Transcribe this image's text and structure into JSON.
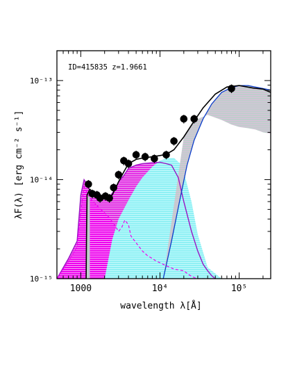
{
  "chart_data": {
    "type": "line",
    "annotation": "ID=415835 z=1.9661",
    "xlabel": "wavelength λ[Å]",
    "ylabel": "λF(λ) [erg cm⁻² s⁻¹]",
    "xscale": "log",
    "yscale": "log",
    "xlim": [
      500,
      250000
    ],
    "ylim": [
      1e-15,
      2e-13
    ],
    "x_ticks": [
      {
        "value": 1000,
        "label": "1000"
      },
      {
        "value": 10000,
        "label": "10⁴"
      },
      {
        "value": 100000,
        "label": "10⁵"
      }
    ],
    "y_ticks": [
      {
        "value": 1e-15,
        "label": "10⁻¹⁵"
      },
      {
        "value": 1e-14,
        "label": "10⁻¹⁴"
      },
      {
        "value": 1e-13,
        "label": "10⁻¹³"
      }
    ],
    "colors": {
      "magenta": "#ee00ee",
      "magenta_line": "#9a14c4",
      "mauve": "#c8a6cf",
      "cyan": "#8ef0f4",
      "grey": "#c0cdcc",
      "blue": "#0b3cc9",
      "black": "#000000"
    },
    "photometry": {
      "x": [
        1250,
        1400,
        1600,
        1750,
        2050,
        2300,
        2600,
        3000,
        3500,
        4000,
        5000,
        6500,
        8500,
        12000,
        15000,
        20000,
        27000,
        80000
      ],
      "y": [
        9e-15,
        7.2e-15,
        7e-15,
        6.5e-15,
        6.8e-15,
        6.5e-15,
        8.3e-15,
        1.12e-14,
        1.55e-14,
        1.45e-14,
        1.78e-14,
        1.7e-14,
        1.63e-14,
        1.78e-14,
        2.45e-14,
        4.1e-14,
        4.1e-14,
        8.3e-14
      ],
      "yerr_frac": 0.1
    },
    "series": [
      {
        "role": "total",
        "x": [
          1170,
          1180,
          1200,
          1300,
          1500,
          1700,
          2000,
          2500,
          3000,
          3500,
          4000,
          5000,
          6000,
          8000,
          10000,
          12000,
          15000,
          20000,
          27000,
          35000,
          50000,
          70000,
          100000,
          150000,
          200000,
          250000
        ],
        "y": [
          1e-15,
          2.5e-15,
          7e-15,
          8e-15,
          7.2e-15,
          6.8e-15,
          6.4e-15,
          7e-15,
          9.5e-15,
          1.2e-14,
          1.45e-14,
          1.6e-14,
          1.65e-14,
          1.7e-14,
          1.75e-14,
          1.8e-14,
          2e-14,
          2.7e-14,
          3.9e-14,
          5.3e-14,
          7.3e-14,
          8.6e-14,
          8.9e-14,
          8.4e-14,
          8.2e-14,
          7.6e-14
        ]
      },
      {
        "role": "host_upper",
        "x": [
          500,
          700,
          900,
          1000,
          1100,
          1200,
          1300,
          1500,
          1700,
          2000,
          2300,
          2700,
          3000,
          3500,
          4000,
          5000,
          6000,
          8000,
          10000,
          12000,
          14000,
          17000,
          20000,
          25000,
          30000,
          35000,
          40000,
          45000,
          50000
        ],
        "y": [
          1e-15,
          1.6e-15,
          2.4e-15,
          7e-15,
          1e-14,
          9e-15,
          7.7e-15,
          7e-15,
          6.6e-15,
          6.4e-15,
          6.6e-15,
          8e-15,
          9.5e-15,
          1.1e-14,
          1.3e-14,
          1.4e-14,
          1.45e-14,
          1.48e-14,
          1.5e-14,
          1.45e-14,
          1.4e-14,
          1.05e-14,
          6e-15,
          3e-15,
          1.9e-15,
          1.4e-15,
          1.2e-15,
          1.07e-15,
          1e-15
        ]
      },
      {
        "role": "host_lower",
        "x": [
          500,
          700,
          900,
          1000,
          1100,
          1300,
          1500,
          1800,
          2200,
          2600,
          3000,
          3300,
          3600,
          4000,
          4300,
          5000,
          6000,
          7000,
          8000,
          9000,
          10000,
          12000,
          15000,
          20000,
          23000,
          26000,
          30000,
          35000,
          45000,
          50000
        ],
        "y": [
          1e-15,
          1.5e-15,
          2.1e-15,
          4.8e-15,
          8.5e-15,
          6.5e-15,
          5.8e-15,
          5e-15,
          4.3e-15,
          3.6e-15,
          3e-15,
          3.3e-15,
          3.9e-15,
          3.5e-15,
          2.7e-15,
          2.3e-15,
          1.9e-15,
          1.7e-15,
          1.6e-15,
          1.5e-15,
          1.45e-15,
          1.35e-15,
          1.25e-15,
          1.2e-15,
          1.1e-15,
          1.04e-15,
          1e-15,
          1e-15,
          1e-15,
          1e-15
        ]
      },
      {
        "role": "agn_accretion_disk",
        "x": [
          2000,
          2500,
          3000,
          4000,
          5000,
          6000,
          8000,
          10000,
          12000,
          15000,
          18000,
          20000,
          25000,
          30000,
          40000,
          60000,
          80000,
          100000,
          120000,
          160000,
          200000,
          250000
        ],
        "y": [
          1e-15,
          2.5e-15,
          4e-15,
          6.2e-15,
          8.5e-15,
          1.05e-14,
          1.35e-14,
          1.55e-14,
          1.65e-14,
          1.66e-14,
          1.45e-14,
          1.2e-14,
          6e-15,
          2.8e-15,
          1.3e-15,
          1e-15,
          1e-15,
          1e-15,
          1e-15,
          1e-15,
          1e-15,
          1e-15
        ]
      },
      {
        "role": "agn_torus",
        "x": [
          11000,
          14000,
          18000,
          22000,
          27000,
          35000,
          45000,
          60000,
          80000,
          100000,
          130000,
          160000,
          200000,
          250000
        ],
        "y": [
          1e-15,
          2.4e-15,
          6.5e-15,
          1.4e-14,
          2.5e-14,
          4.1e-14,
          5.8e-14,
          7.6e-14,
          8.5e-14,
          8.9e-14,
          8.9e-14,
          8.6e-14,
          8.3e-14,
          8e-14
        ]
      },
      {
        "role": "agn_torus_lower",
        "x": [
          20000,
          25000,
          30000,
          40000,
          60000,
          80000,
          100000,
          130000,
          160000,
          200000,
          250000
        ],
        "y": [
          2.7e-14,
          3.6e-14,
          4.1e-14,
          4.5e-14,
          4e-14,
          3.6e-14,
          3.4e-14,
          3.3e-14,
          3.2e-14,
          3e-14,
          2.9e-14
        ]
      }
    ]
  }
}
